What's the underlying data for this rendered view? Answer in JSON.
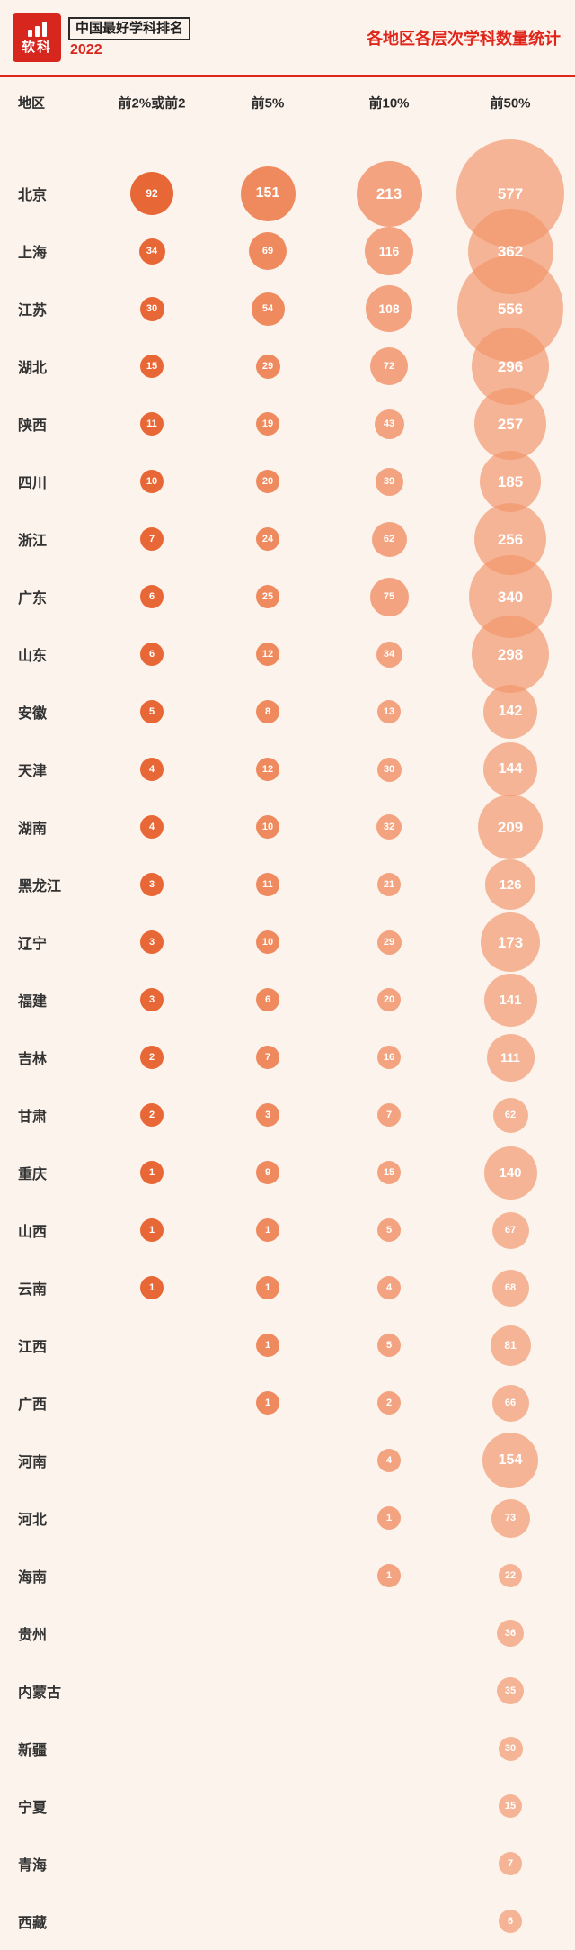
{
  "header": {
    "logo_mark": "软科",
    "brand_title": "中国最好学科排名",
    "brand_year": "2022"
  },
  "chart_data": {
    "type": "table",
    "encoding": "bubble-size",
    "title": "各地区各层次学科数量统计",
    "columns": [
      "地区",
      "前2%或前2",
      "前5%",
      "前10%",
      "前50%"
    ],
    "rows": [
      {
        "region": "北京",
        "values": [
          92,
          151,
          213,
          577
        ]
      },
      {
        "region": "上海",
        "values": [
          34,
          69,
          116,
          362
        ]
      },
      {
        "region": "江苏",
        "values": [
          30,
          54,
          108,
          556
        ]
      },
      {
        "region": "湖北",
        "values": [
          15,
          29,
          72,
          296
        ]
      },
      {
        "region": "陕西",
        "values": [
          11,
          19,
          43,
          257
        ]
      },
      {
        "region": "四川",
        "values": [
          10,
          20,
          39,
          185
        ]
      },
      {
        "region": "浙江",
        "values": [
          7,
          24,
          62,
          256
        ]
      },
      {
        "region": "广东",
        "values": [
          6,
          25,
          75,
          340
        ]
      },
      {
        "region": "山东",
        "values": [
          6,
          12,
          34,
          298
        ]
      },
      {
        "region": "安徽",
        "values": [
          5,
          8,
          13,
          142
        ]
      },
      {
        "region": "天津",
        "values": [
          4,
          12,
          30,
          144
        ]
      },
      {
        "region": "湖南",
        "values": [
          4,
          10,
          32,
          209
        ]
      },
      {
        "region": "黑龙江",
        "values": [
          3,
          11,
          21,
          126
        ]
      },
      {
        "region": "辽宁",
        "values": [
          3,
          10,
          29,
          173
        ]
      },
      {
        "region": "福建",
        "values": [
          3,
          6,
          20,
          141
        ]
      },
      {
        "region": "吉林",
        "values": [
          2,
          7,
          16,
          111
        ]
      },
      {
        "region": "甘肃",
        "values": [
          2,
          3,
          7,
          62
        ]
      },
      {
        "region": "重庆",
        "values": [
          1,
          9,
          15,
          140
        ]
      },
      {
        "region": "山西",
        "values": [
          1,
          1,
          5,
          67
        ]
      },
      {
        "region": "云南",
        "values": [
          1,
          1,
          4,
          68
        ]
      },
      {
        "region": "江西",
        "values": [
          null,
          1,
          5,
          81
        ]
      },
      {
        "region": "广西",
        "values": [
          null,
          1,
          2,
          66
        ]
      },
      {
        "region": "河南",
        "values": [
          null,
          null,
          4,
          154
        ]
      },
      {
        "region": "河北",
        "values": [
          null,
          null,
          1,
          73
        ]
      },
      {
        "region": "海南",
        "values": [
          null,
          null,
          1,
          22
        ]
      },
      {
        "region": "贵州",
        "values": [
          null,
          null,
          null,
          36
        ]
      },
      {
        "region": "内蒙古",
        "values": [
          null,
          null,
          null,
          35
        ]
      },
      {
        "region": "新疆",
        "values": [
          null,
          null,
          null,
          30
        ]
      },
      {
        "region": "宁夏",
        "values": [
          null,
          null,
          null,
          15
        ]
      },
      {
        "region": "青海",
        "values": [
          null,
          null,
          null,
          7
        ]
      },
      {
        "region": "西藏",
        "values": [
          null,
          null,
          null,
          6
        ]
      }
    ],
    "tier_colors": [
      "#e75f2c",
      "#ec7745",
      "#ef8a5c",
      "#f1966c"
    ],
    "accent_red": "#e0261a",
    "background": "#fcf3ec",
    "grid": false,
    "legend": "none"
  }
}
